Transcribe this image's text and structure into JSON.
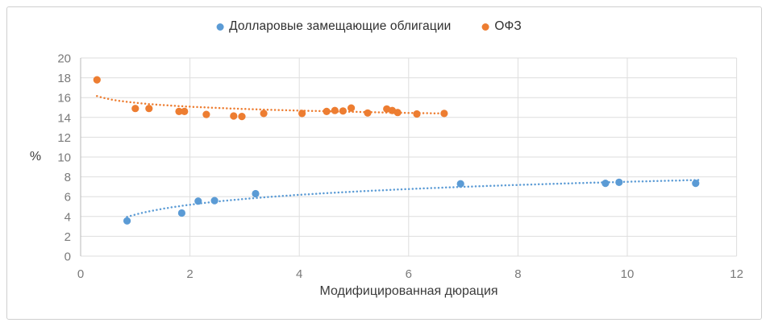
{
  "chart_data": {
    "type": "scatter",
    "title": "",
    "xlabel": "Модифицированная дюрация",
    "ylabel": "%",
    "xlim": [
      0,
      12
    ],
    "ylim": [
      0,
      20
    ],
    "x_ticks": [
      0,
      2,
      4,
      6,
      8,
      10,
      12
    ],
    "y_ticks": [
      0,
      2,
      4,
      6,
      8,
      10,
      12,
      14,
      16,
      18,
      20
    ],
    "grid": true,
    "legend_position": "top-center",
    "series": [
      {
        "name": "Долларовые замещающие облигации",
        "color": "#5B9BD5",
        "points": [
          [
            0.85,
            3.55
          ],
          [
            1.85,
            4.35
          ],
          [
            2.15,
            5.55
          ],
          [
            2.45,
            5.6
          ],
          [
            3.2,
            6.3
          ],
          [
            6.95,
            7.3
          ],
          [
            9.6,
            7.35
          ],
          [
            9.85,
            7.45
          ],
          [
            11.25,
            7.35
          ]
        ],
        "trendline": {
          "type": "logarithmic",
          "style": "dotted",
          "a": 4.19,
          "b": 1.44,
          "domain": [
            0.85,
            11.3
          ]
        }
      },
      {
        "name": "ОФЗ",
        "color": "#ED7D31",
        "points": [
          [
            0.3,
            17.8
          ],
          [
            1.0,
            14.9
          ],
          [
            1.25,
            14.9
          ],
          [
            1.8,
            14.6
          ],
          [
            1.9,
            14.6
          ],
          [
            2.3,
            14.3
          ],
          [
            2.8,
            14.15
          ],
          [
            2.95,
            14.1
          ],
          [
            3.35,
            14.4
          ],
          [
            4.05,
            14.4
          ],
          [
            4.5,
            14.6
          ],
          [
            4.65,
            14.7
          ],
          [
            4.8,
            14.65
          ],
          [
            4.95,
            14.95
          ],
          [
            5.25,
            14.45
          ],
          [
            5.6,
            14.85
          ],
          [
            5.7,
            14.7
          ],
          [
            5.8,
            14.5
          ],
          [
            6.15,
            14.35
          ],
          [
            6.65,
            14.4
          ]
        ],
        "trendline": {
          "type": "logarithmic",
          "style": "dotted",
          "a": 15.48,
          "b": -0.57,
          "domain": [
            0.3,
            6.7
          ]
        }
      }
    ]
  },
  "styles": {
    "background": "#ffffff",
    "border_color": "#cfcfcf",
    "grid_color": "#dedede",
    "axis_line_color": "#b8b8b8",
    "tick_label_color": "#7a7a7a",
    "axis_title_color": "#3b3b3b",
    "legend_text_color": "#303030"
  }
}
